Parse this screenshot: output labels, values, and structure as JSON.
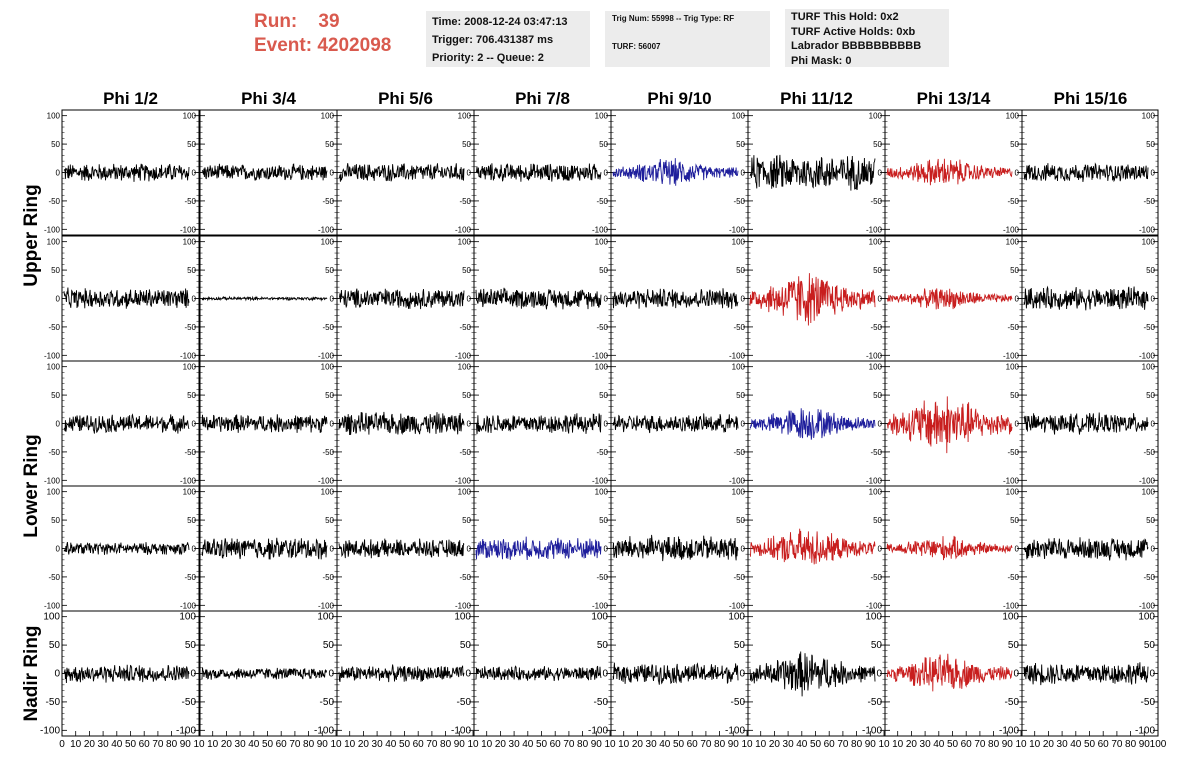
{
  "header": {
    "run_label": "Run:",
    "run_value": "39",
    "event_label": "Event:",
    "event_value": "4202098"
  },
  "info_time": {
    "time": "Time: 2008-12-24 03:47:13",
    "trigger": "Trigger: 706.431387 ms",
    "priority": "Priority: 2 -- Queue: 2"
  },
  "info_trig": {
    "trig": "Trig Num: 55998 -- Trig Type: RF",
    "turf": "TURF: 56007"
  },
  "info_turf": {
    "hold": "TURF This Hold: 0x2",
    "active": "TURF Active Holds: 0xb",
    "labrador": "Labrador BBBBBBBBBB",
    "phimask": "Phi Mask: 0"
  },
  "colors": {
    "title_red": "#d95a4e",
    "trace_black": "#000000",
    "trace_blue": "#1f1f9c",
    "trace_red": "#c81e1e",
    "box_bg": "#ececec"
  },
  "chart_data": {
    "type": "line",
    "title": "",
    "columns": [
      "Phi 1/2",
      "Phi 3/4",
      "Phi 5/6",
      "Phi 7/8",
      "Phi 9/10",
      "Phi 11/12",
      "Phi 13/14",
      "Phi 15/16"
    ],
    "rows": [
      "Upper Ring",
      "Lower Ring",
      "Nadir Ring"
    ],
    "ylim": [
      -110,
      110
    ],
    "yticks": [
      -100,
      -50,
      0,
      50,
      100
    ],
    "ytick_labels": [
      "-100",
      "-50",
      "0",
      "50",
      "100"
    ],
    "xlim": [
      0,
      100
    ],
    "xtick_labels": [
      "0",
      "10",
      "20",
      "30",
      "40",
      "50",
      "60",
      "70",
      "80",
      "90",
      "100"
    ],
    "bottom_xtick_labels": [
      "0",
      "10",
      "20",
      "30",
      "40",
      "50",
      "60",
      "70",
      "80",
      "90",
      "10",
      "10",
      "20",
      "30",
      "40",
      "50",
      "60",
      "70",
      "80",
      "90",
      "10",
      "10",
      "20",
      "30",
      "40",
      "50",
      "60",
      "70",
      "80",
      "90",
      "10",
      "10",
      "20",
      "30",
      "40",
      "50",
      "60",
      "70",
      "80",
      "90",
      "10",
      "10",
      "20",
      "30",
      "40",
      "50",
      "60",
      "70",
      "80",
      "90",
      "10",
      "10",
      "20",
      "30",
      "40",
      "50",
      "60",
      "70",
      "80",
      "90",
      "10",
      "10",
      "20",
      "30",
      "40",
      "50",
      "60",
      "70",
      "80",
      "90",
      "10",
      "10",
      "20",
      "30",
      "40",
      "50",
      "60",
      "70",
      "80",
      "90",
      "100"
    ],
    "traces": [
      {
        "row": 0,
        "col": 0,
        "color": "black",
        "amplitude": 18,
        "envelope": "flat"
      },
      {
        "row": 0,
        "col": 1,
        "color": "black",
        "amplitude": 16,
        "envelope": "flat"
      },
      {
        "row": 0,
        "col": 2,
        "color": "black",
        "amplitude": 18,
        "envelope": "flat"
      },
      {
        "row": 0,
        "col": 3,
        "color": "black",
        "amplitude": 18,
        "envelope": "flat"
      },
      {
        "row": 0,
        "col": 4,
        "color": "blue",
        "amplitude": 28,
        "envelope": "burst"
      },
      {
        "row": 0,
        "col": 5,
        "color": "black",
        "amplitude": 35,
        "envelope": "flat"
      },
      {
        "row": 0,
        "col": 6,
        "color": "red",
        "amplitude": 30,
        "envelope": "burst"
      },
      {
        "row": 0,
        "col": 7,
        "color": "black",
        "amplitude": 18,
        "envelope": "flat"
      },
      {
        "row": 1,
        "col": 0,
        "color": "black",
        "amplitude": 20,
        "envelope": "flat"
      },
      {
        "row": 1,
        "col": 1,
        "color": "black",
        "amplitude": 3,
        "envelope": "flat"
      },
      {
        "row": 1,
        "col": 2,
        "color": "black",
        "amplitude": 20,
        "envelope": "flat"
      },
      {
        "row": 1,
        "col": 3,
        "color": "black",
        "amplitude": 20,
        "envelope": "flat"
      },
      {
        "row": 1,
        "col": 4,
        "color": "black",
        "amplitude": 20,
        "envelope": "flat"
      },
      {
        "row": 1,
        "col": 5,
        "color": "red",
        "amplitude": 55,
        "envelope": "burst"
      },
      {
        "row": 1,
        "col": 6,
        "color": "red",
        "amplitude": 22,
        "envelope": "burst"
      },
      {
        "row": 1,
        "col": 7,
        "color": "black",
        "amplitude": 22,
        "envelope": "flat"
      },
      {
        "row": 2,
        "col": 0,
        "color": "black",
        "amplitude": 18,
        "envelope": "flat"
      },
      {
        "row": 2,
        "col": 1,
        "color": "black",
        "amplitude": 18,
        "envelope": "flat"
      },
      {
        "row": 2,
        "col": 2,
        "color": "black",
        "amplitude": 22,
        "envelope": "flat"
      },
      {
        "row": 2,
        "col": 3,
        "color": "black",
        "amplitude": 20,
        "envelope": "flat"
      },
      {
        "row": 2,
        "col": 4,
        "color": "black",
        "amplitude": 18,
        "envelope": "flat"
      },
      {
        "row": 2,
        "col": 5,
        "color": "blue",
        "amplitude": 35,
        "envelope": "burst"
      },
      {
        "row": 2,
        "col": 6,
        "color": "red",
        "amplitude": 60,
        "envelope": "burst"
      },
      {
        "row": 2,
        "col": 7,
        "color": "black",
        "amplitude": 20,
        "envelope": "flat"
      },
      {
        "row": 3,
        "col": 0,
        "color": "black",
        "amplitude": 12,
        "envelope": "flat"
      },
      {
        "row": 3,
        "col": 1,
        "color": "black",
        "amplitude": 22,
        "envelope": "flat"
      },
      {
        "row": 3,
        "col": 2,
        "color": "black",
        "amplitude": 18,
        "envelope": "flat"
      },
      {
        "row": 3,
        "col": 3,
        "color": "blue",
        "amplitude": 22,
        "envelope": "flat"
      },
      {
        "row": 3,
        "col": 4,
        "color": "black",
        "amplitude": 25,
        "envelope": "flat"
      },
      {
        "row": 3,
        "col": 5,
        "color": "red",
        "amplitude": 40,
        "envelope": "burst"
      },
      {
        "row": 3,
        "col": 6,
        "color": "red",
        "amplitude": 25,
        "envelope": "burst"
      },
      {
        "row": 3,
        "col": 7,
        "color": "black",
        "amplitude": 22,
        "envelope": "flat"
      },
      {
        "row": 4,
        "col": 0,
        "color": "black",
        "amplitude": 18,
        "envelope": "flat"
      },
      {
        "row": 4,
        "col": 1,
        "color": "black",
        "amplitude": 12,
        "envelope": "flat"
      },
      {
        "row": 4,
        "col": 2,
        "color": "black",
        "amplitude": 16,
        "envelope": "flat"
      },
      {
        "row": 4,
        "col": 3,
        "color": "black",
        "amplitude": 14,
        "envelope": "flat"
      },
      {
        "row": 4,
        "col": 4,
        "color": "black",
        "amplitude": 20,
        "envelope": "flat"
      },
      {
        "row": 4,
        "col": 5,
        "color": "black",
        "amplitude": 45,
        "envelope": "burst"
      },
      {
        "row": 4,
        "col": 6,
        "color": "red",
        "amplitude": 38,
        "envelope": "burst"
      },
      {
        "row": 4,
        "col": 7,
        "color": "black",
        "amplitude": 22,
        "envelope": "flat"
      }
    ]
  }
}
